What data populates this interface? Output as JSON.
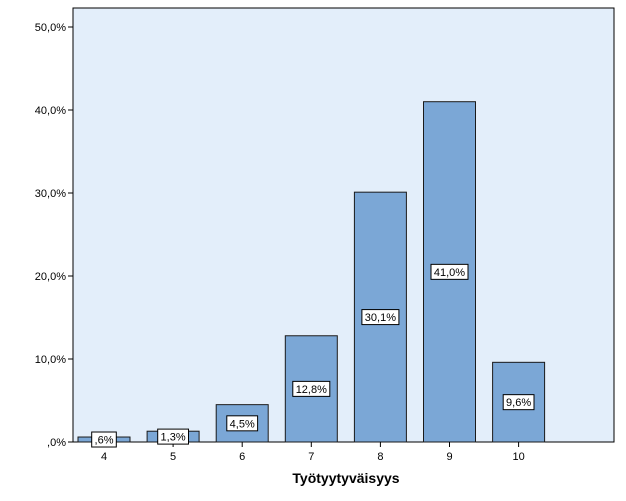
{
  "chart_data": {
    "type": "bar",
    "title": "",
    "xlabel": "Työtyytyväisyys",
    "ylabel": "",
    "categories": [
      "4",
      "5",
      "6",
      "7",
      "8",
      "9",
      "10"
    ],
    "values": [
      0.6,
      1.3,
      4.5,
      12.8,
      30.1,
      41.0,
      9.6
    ],
    "data_labels": [
      ",6%",
      "1,3%",
      "4,5%",
      "12,8%",
      "30,1%",
      "41,0%",
      "9,6%"
    ],
    "ylim": [
      0,
      50
    ],
    "y_ticks": [
      0,
      10,
      20,
      30,
      40,
      50
    ],
    "y_tick_labels": [
      ",0%",
      "10,0%",
      "20,0%",
      "30,0%",
      "40,0%",
      "50,0%"
    ],
    "grid": false,
    "legend": "none",
    "colors": {
      "plot_background": "#e3eefa",
      "bar_fill": "#7ba7d6",
      "bar_stroke": "#1a1a1a",
      "label_box": "#ffffff"
    }
  }
}
